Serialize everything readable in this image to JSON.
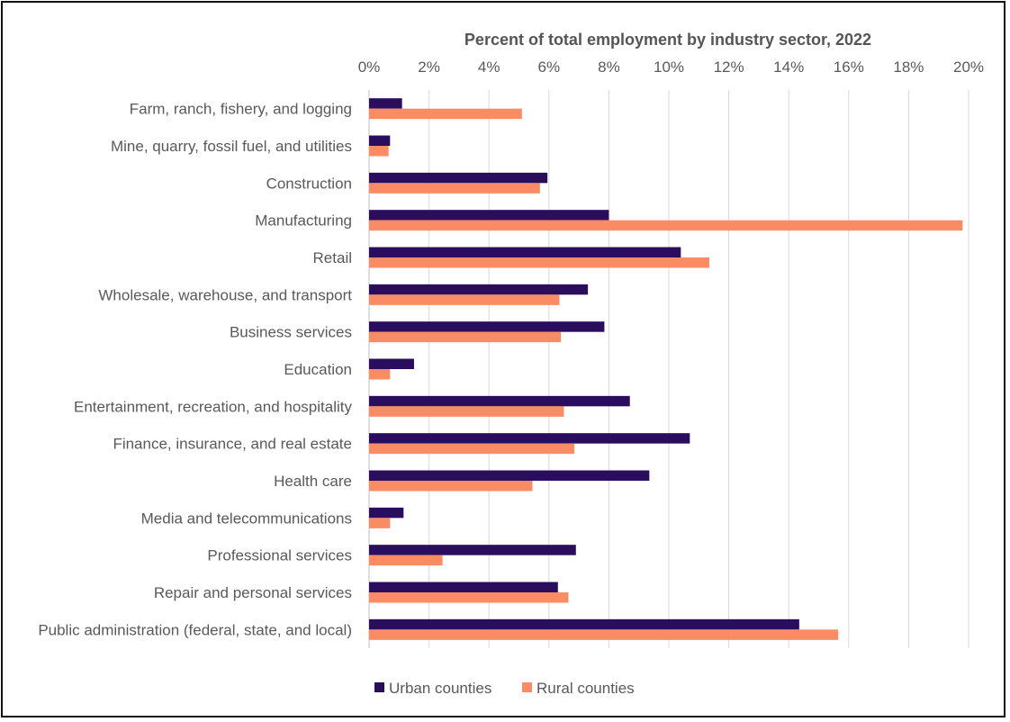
{
  "chart_data": {
    "type": "bar",
    "orientation": "horizontal",
    "title": "Percent of total employment by industry sector, 2022",
    "xlabel": "",
    "ylabel": "",
    "xlim": [
      0,
      20
    ],
    "x_ticks": [
      "0%",
      "2%",
      "4%",
      "6%",
      "8%",
      "10%",
      "12%",
      "14%",
      "16%",
      "18%",
      "20%"
    ],
    "x_axis_position": "top",
    "grid": "vertical",
    "legend": "bottom",
    "categories": [
      "Farm, ranch, fishery, and logging",
      "Mine, quarry, fossil fuel, and utilities",
      "Construction",
      "Manufacturing",
      "Retail",
      "Wholesale, warehouse, and transport",
      "Business services",
      "Education",
      "Entertainment, recreation, and hospitality",
      "Finance, insurance, and real estate",
      "Health care",
      "Media and telecommunications",
      "Professional services",
      "Repair and personal services",
      "Public administration (federal, state, and local)"
    ],
    "series": [
      {
        "name": "Urban counties",
        "color": "#2B0D5E",
        "values": [
          1.1,
          0.7,
          5.95,
          8.0,
          10.4,
          7.3,
          7.85,
          1.5,
          8.7,
          10.7,
          9.35,
          1.15,
          6.9,
          6.3,
          14.35
        ]
      },
      {
        "name": "Rural counties",
        "color": "#F98C64",
        "values": [
          5.1,
          0.65,
          5.7,
          19.8,
          11.35,
          6.35,
          6.4,
          0.7,
          6.5,
          6.85,
          5.45,
          0.7,
          2.45,
          6.65,
          15.65
        ]
      }
    ]
  }
}
